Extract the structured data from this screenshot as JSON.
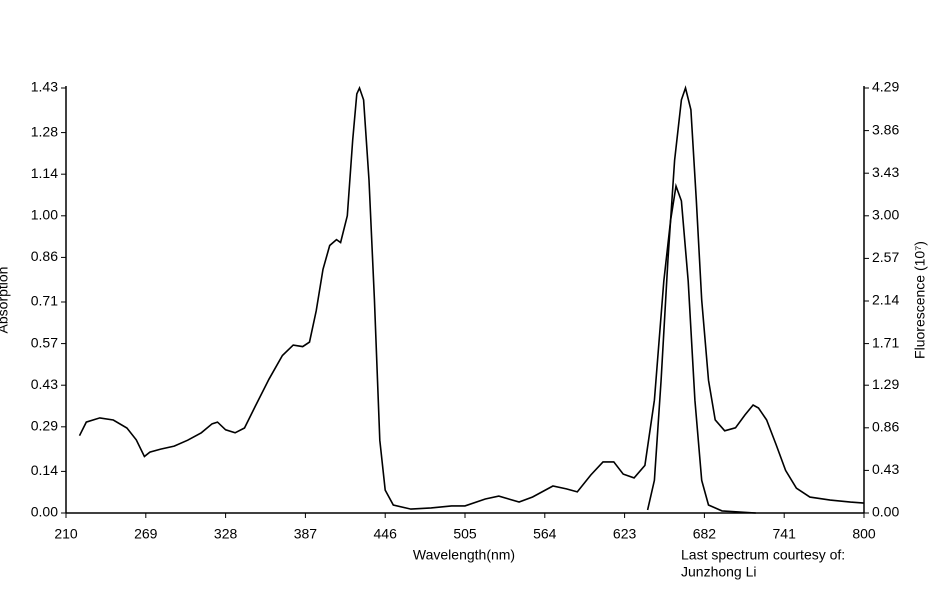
{
  "chart_data": {
    "type": "line",
    "xlabel": "Wavelength(nm)",
    "ylabel": "Absorption",
    "y2label": "Fluorescence (10⁷)",
    "note": [
      "Last spectrum courtesy of:",
      "Junzhong Li"
    ],
    "xlim": [
      210,
      800
    ],
    "xticks": [
      210,
      269,
      328,
      387,
      446,
      505,
      564,
      623,
      682,
      741,
      800
    ],
    "ylim": [
      0,
      1.43
    ],
    "yticks": [
      {
        "value": 0,
        "label": "0.00"
      },
      0.14,
      0.29,
      0.43,
      0.57,
      0.71,
      0.86,
      {
        "value": 1,
        "label": "1.00"
      },
      1.14,
      1.28,
      1.43
    ],
    "y2lim": [
      0,
      4.29
    ],
    "y2ticks": [
      {
        "value": 0,
        "label": "0.00"
      },
      0.43,
      0.86,
      1.29,
      1.71,
      2.14,
      2.57,
      {
        "value": 3,
        "label": "3.00"
      },
      3.43,
      3.86,
      4.29
    ],
    "series": [
      {
        "name": "Absorption",
        "color": "#000000",
        "x": [
          220,
          225,
          235,
          245,
          255,
          262,
          268,
          272,
          280,
          290,
          300,
          310,
          318,
          322,
          328,
          335,
          342,
          350,
          360,
          370,
          378,
          385,
          390,
          395,
          400,
          405,
          410,
          413,
          418,
          422,
          425,
          427,
          430,
          434,
          438,
          442,
          446,
          452,
          465,
          480,
          495,
          505,
          520,
          530,
          545,
          555,
          570,
          580,
          588,
          598,
          607,
          615,
          622,
          630,
          638,
          645,
          652,
          657,
          661,
          665,
          670,
          675,
          680,
          685,
          695,
          720
        ],
        "values": [
          0.26,
          0.306,
          0.32,
          0.313,
          0.286,
          0.246,
          0.19,
          0.205,
          0.215,
          0.225,
          0.245,
          0.27,
          0.3,
          0.306,
          0.28,
          0.27,
          0.286,
          0.36,
          0.45,
          0.53,
          0.565,
          0.56,
          0.575,
          0.68,
          0.82,
          0.9,
          0.92,
          0.91,
          1.0,
          1.255,
          1.41,
          1.43,
          1.39,
          1.12,
          0.72,
          0.245,
          0.077,
          0.027,
          0.013,
          0.017,
          0.024,
          0.024,
          0.047,
          0.057,
          0.037,
          0.054,
          0.091,
          0.081,
          0.071,
          0.128,
          0.172,
          0.172,
          0.131,
          0.118,
          0.16,
          0.38,
          0.78,
          0.985,
          1.1,
          1.05,
          0.78,
          0.38,
          0.11,
          0.027,
          0.007,
          0
        ]
      },
      {
        "name": "Fluorescence",
        "color": "#000000",
        "axis": "y2",
        "x": [
          640,
          645,
          650,
          655,
          660,
          665,
          668,
          672,
          676,
          680,
          685,
          690,
          697,
          705,
          712,
          718,
          722,
          728,
          735,
          742,
          750,
          760,
          775,
          790,
          800
        ],
        "values": [
          0.03,
          0.33,
          1.34,
          2.55,
          3.56,
          4.17,
          4.29,
          4.07,
          3.16,
          2.15,
          1.34,
          0.94,
          0.83,
          0.86,
          0.99,
          1.09,
          1.06,
          0.94,
          0.69,
          0.43,
          0.25,
          0.16,
          0.13,
          0.11,
          0.1
        ]
      }
    ]
  }
}
